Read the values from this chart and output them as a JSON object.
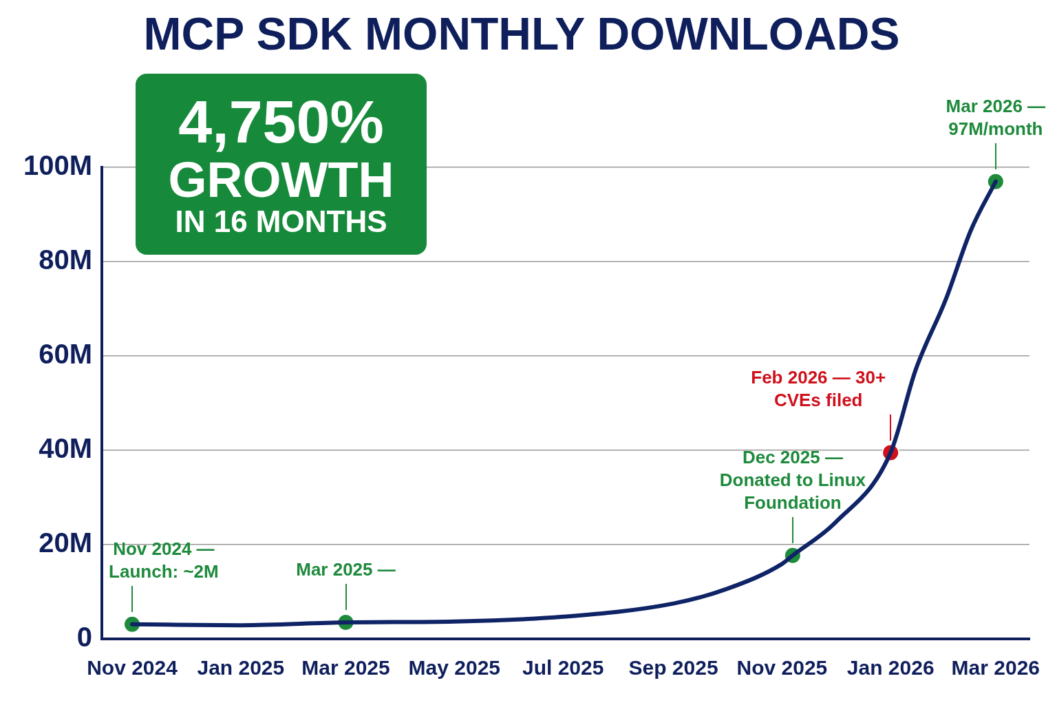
{
  "chart_data": {
    "type": "line",
    "title": "MCP SDK MONTHLY DOWNLOADS",
    "x": [
      "2024-11",
      "2025-01",
      "2025-03",
      "2025-05",
      "2025-07",
      "2025-09",
      "2025-10",
      "2025-11",
      "2025-11-07",
      "2025-12",
      "2026-01",
      "2026-01-15",
      "2026-02",
      "2026-02-15",
      "2026-03"
    ],
    "series": [
      {
        "marker": "none",
        "color": "#0f2466",
        "values": [
          3.1,
          2.9,
          3.5,
          3.7,
          4.7,
          7.5,
          10.6,
          15.9,
          17.7,
          24.7,
          39.5,
          57,
          72,
          86.6,
          97
        ]
      },
      {
        "type": "scatter",
        "marker": "circle",
        "x": [
          "2024-11",
          "2025-03",
          "2025-11-07",
          "2026-01",
          "2026-03"
        ],
        "colors": [
          "#1e8a3c",
          "#1e8a3c",
          "#1e8a3c",
          "#d0101c",
          "#1e8a3c"
        ],
        "values": [
          3.1,
          3.5,
          17.7,
          39.5,
          97
        ]
      }
    ],
    "annotations": [
      {
        "text": "Nov 2024 — Launch: ~2M",
        "x": "2024-11",
        "y": 3.1
      },
      {
        "text": "Mar 2025 —",
        "x": "2025-03",
        "y": 3.5
      },
      {
        "text": "Dec 2025 — Donated to Linux Foundation",
        "x": "2025-11-07",
        "y": 17.7
      },
      {
        "text": "Feb 2026 — 30+ CVEs filed",
        "x": "2026-01",
        "y": 39.5
      },
      {
        "text": "Mar 2026 — 97M/month",
        "x": "2026-03",
        "y": 97
      },
      "4,750%",
      "GROWTH",
      "IN 16 MONTHS"
    ],
    "xlim": [
      "2024-10-15",
      "2026-03-20"
    ],
    "xticks": [
      {
        "value": "2024-11",
        "label": "Nov 2024"
      },
      {
        "value": "2025-01",
        "label": "Jan 2025"
      },
      {
        "value": "2025-03",
        "label": "Mar 2025"
      },
      {
        "value": "2025-05",
        "label": "May 2025"
      },
      {
        "value": "2025-07",
        "label": "Jul 2025"
      },
      {
        "value": "2025-09",
        "label": "Sep 2025"
      },
      {
        "value": "2025-11",
        "label": "Nov 2025"
      },
      {
        "value": "2026-01",
        "label": "Jan 2026"
      },
      {
        "value": "2026-03",
        "label": "Mar 2026"
      }
    ],
    "ylim": [
      0,
      100
    ],
    "yticks": [
      0,
      {
        "value": 20,
        "label": "20M"
      },
      {
        "value": 40,
        "label": "40M"
      },
      {
        "value": 60,
        "label": "60M"
      },
      {
        "value": 80,
        "label": "80M"
      },
      {
        "value": 100,
        "label": "100M"
      }
    ],
    "grid": "y",
    "line_style": "solid",
    "legend": false
  }
}
